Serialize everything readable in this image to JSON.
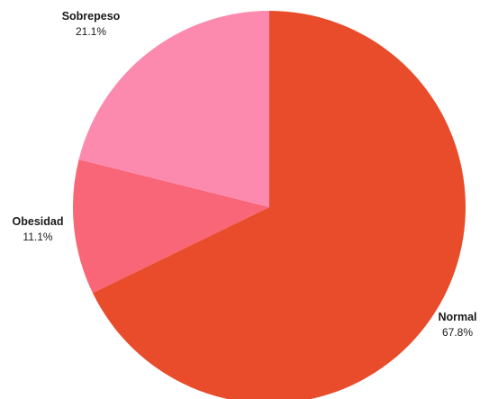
{
  "chart_data": {
    "type": "pie",
    "title": "",
    "slices": [
      {
        "name": "Normal",
        "value": 67.8,
        "label": "67.8%",
        "color": "#e84c2b"
      },
      {
        "name": "Obesidad",
        "value": 11.1,
        "label": "11.1%",
        "color": "#f96677"
      },
      {
        "name": "Sobrepeso",
        "value": 21.1,
        "label": "21.1%",
        "color": "#fb8aae"
      }
    ],
    "start": "12 o'clock",
    "direction": "clockwise",
    "legend": "none"
  }
}
